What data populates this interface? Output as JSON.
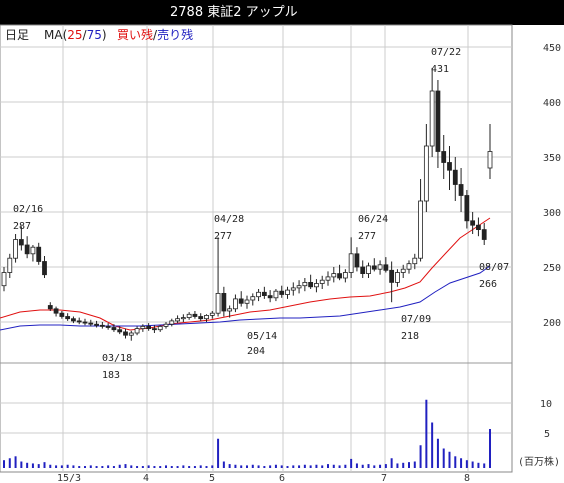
{
  "title": "2788 東証2 アップル",
  "header": {
    "period": "日足",
    "ma_prefix": "MA(",
    "ma_short": "25",
    "ma_sep": "/",
    "ma_long": "75",
    "ma_suffix": ")",
    "buy_label": "買い残",
    "slash": "/",
    "sell_label": "売り残"
  },
  "colors": {
    "ma_short": "#e01010",
    "ma_long": "#2020c0",
    "buy": "#e01010",
    "sell": "#2020c0",
    "volume": "#2020c0"
  },
  "price_axis": [
    "450",
    "400",
    "350",
    "300",
    "250",
    "200"
  ],
  "volume_axis": [
    "10",
    "5"
  ],
  "volume_unit": "(百万株)",
  "x_axis": [
    "15/3",
    "4",
    "5",
    "6",
    "7",
    "8"
  ],
  "annotations": {
    "a0216_date": "02/16",
    "a0216_val": "287",
    "a0318_date": "03/18",
    "a0318_val": "183",
    "a0428_date": "04/28",
    "a0428_val": "277",
    "a0514_date": "05/14",
    "a0514_val": "204",
    "a0624_date": "06/24",
    "a0624_val": "277",
    "a0709_date": "07/09",
    "a0709_val": "218",
    "a0722_date": "07/22",
    "a0722_val": "431",
    "a0807_date": "08/07",
    "a0807_val": "266"
  },
  "chart_data": {
    "type": "candlestick",
    "ylim": [
      185,
      455
    ],
    "volume_ylim": [
      0,
      14
    ],
    "candles": [
      [
        233,
        250,
        228,
        245
      ],
      [
        245,
        262,
        240,
        258
      ],
      [
        258,
        280,
        254,
        275
      ],
      [
        275,
        287,
        265,
        270
      ],
      [
        270,
        278,
        258,
        262
      ],
      [
        262,
        270,
        255,
        268
      ],
      [
        268,
        272,
        252,
        255
      ],
      [
        255,
        260,
        240,
        243
      ],
      [
        215,
        218,
        210,
        212
      ],
      [
        212,
        214,
        205,
        208
      ],
      [
        208,
        210,
        203,
        205
      ],
      [
        205,
        208,
        201,
        203
      ],
      [
        203,
        205,
        199,
        201
      ],
      [
        201,
        204,
        198,
        200
      ],
      [
        200,
        203,
        197,
        199
      ],
      [
        199,
        202,
        196,
        198
      ],
      [
        198,
        201,
        195,
        197
      ],
      [
        197,
        200,
        194,
        196
      ],
      [
        196,
        199,
        193,
        195
      ],
      [
        195,
        198,
        191,
        193
      ],
      [
        193,
        196,
        189,
        191
      ],
      [
        191,
        194,
        185,
        188
      ],
      [
        188,
        192,
        183,
        190
      ],
      [
        190,
        196,
        188,
        194
      ],
      [
        194,
        198,
        191,
        196
      ],
      [
        196,
        199,
        192,
        194
      ],
      [
        194,
        197,
        190,
        193
      ],
      [
        193,
        197,
        191,
        196
      ],
      [
        196,
        200,
        194,
        198
      ],
      [
        198,
        203,
        196,
        201
      ],
      [
        201,
        206,
        199,
        203
      ],
      [
        203,
        207,
        200,
        204
      ],
      [
        204,
        209,
        202,
        207
      ],
      [
        207,
        210,
        203,
        205
      ],
      [
        205,
        208,
        201,
        203
      ],
      [
        203,
        207,
        200,
        206
      ],
      [
        206,
        210,
        203,
        208
      ],
      [
        208,
        277,
        205,
        226
      ],
      [
        226,
        232,
        205,
        210
      ],
      [
        210,
        215,
        204,
        212
      ],
      [
        212,
        225,
        209,
        221
      ],
      [
        221,
        228,
        214,
        217
      ],
      [
        217,
        224,
        212,
        220
      ],
      [
        220,
        226,
        215,
        223
      ],
      [
        223,
        230,
        219,
        227
      ],
      [
        227,
        232,
        221,
        224
      ],
      [
        224,
        229,
        218,
        222
      ],
      [
        222,
        230,
        219,
        228
      ],
      [
        228,
        233,
        222,
        225
      ],
      [
        225,
        232,
        221,
        229
      ],
      [
        229,
        236,
        224,
        231
      ],
      [
        231,
        238,
        226,
        233
      ],
      [
        233,
        240,
        228,
        236
      ],
      [
        236,
        243,
        230,
        232
      ],
      [
        232,
        239,
        227,
        235
      ],
      [
        235,
        242,
        230,
        238
      ],
      [
        238,
        246,
        233,
        241
      ],
      [
        241,
        250,
        236,
        244
      ],
      [
        244,
        252,
        238,
        240
      ],
      [
        240,
        248,
        236,
        245
      ],
      [
        245,
        277,
        240,
        262
      ],
      [
        262,
        268,
        246,
        250
      ],
      [
        250,
        256,
        240,
        244
      ],
      [
        244,
        254,
        240,
        251
      ],
      [
        251,
        258,
        246,
        248
      ],
      [
        248,
        256,
        243,
        252
      ],
      [
        252,
        259,
        245,
        247
      ],
      [
        247,
        255,
        218,
        236
      ],
      [
        236,
        248,
        232,
        245
      ],
      [
        245,
        252,
        240,
        248
      ],
      [
        248,
        256,
        244,
        253
      ],
      [
        253,
        262,
        248,
        258
      ],
      [
        258,
        330,
        255,
        310
      ],
      [
        310,
        380,
        300,
        360
      ],
      [
        360,
        431,
        350,
        410
      ],
      [
        410,
        420,
        340,
        355
      ],
      [
        355,
        370,
        330,
        345
      ],
      [
        345,
        360,
        320,
        338
      ],
      [
        338,
        350,
        310,
        325
      ],
      [
        325,
        340,
        300,
        315
      ],
      [
        315,
        320,
        285,
        292
      ],
      [
        292,
        300,
        280,
        288
      ],
      [
        288,
        295,
        278,
        284
      ],
      [
        284,
        290,
        270,
        275
      ],
      [
        340,
        380,
        330,
        355
      ]
    ],
    "volume": [
      1.2,
      1.5,
      1.8,
      1.0,
      0.8,
      0.7,
      0.6,
      0.9,
      0.5,
      0.4,
      0.4,
      0.5,
      0.4,
      0.3,
      0.3,
      0.4,
      0.3,
      0.3,
      0.4,
      0.3,
      0.5,
      0.6,
      0.4,
      0.3,
      0.3,
      0.4,
      0.3,
      0.3,
      0.4,
      0.3,
      0.3,
      0.4,
      0.3,
      0.3,
      0.4,
      0.3,
      0.4,
      4.5,
      1.0,
      0.6,
      0.5,
      0.4,
      0.4,
      0.5,
      0.4,
      0.3,
      0.4,
      0.5,
      0.4,
      0.3,
      0.4,
      0.4,
      0.5,
      0.4,
      0.5,
      0.4,
      0.6,
      0.5,
      0.4,
      0.5,
      1.4,
      0.7,
      0.5,
      0.6,
      0.4,
      0.5,
      0.6,
      1.5,
      0.7,
      0.8,
      0.9,
      1.0,
      3.5,
      10.5,
      7.0,
      4.5,
      3.0,
      2.5,
      1.8,
      1.5,
      1.2,
      1.0,
      0.8,
      0.7,
      6.0
    ]
  }
}
